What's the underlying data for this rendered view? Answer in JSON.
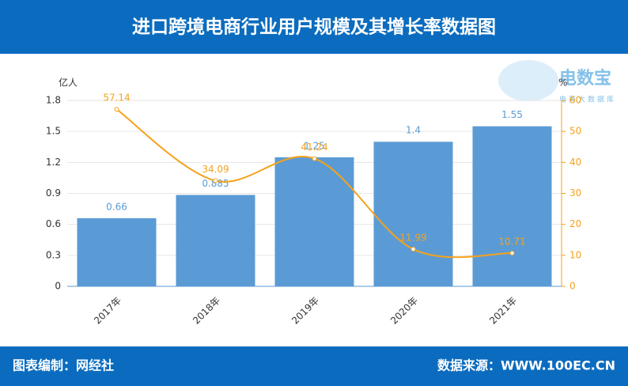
{
  "title": "进口跨境电商行业用户规模及其增长率数据图",
  "logo": {
    "name": "电数宝",
    "tagline": "电商大数据库"
  },
  "footer": {
    "left": "图表编制：网经社",
    "right": "数据来源：WWW.100EC.CN"
  },
  "chart_data": {
    "type": "bar",
    "y_unit": "亿人",
    "y2_unit": "%",
    "categories": [
      "2017年",
      "2018年",
      "2019年",
      "2020年",
      "2021年"
    ],
    "series": [
      {
        "type": "bar",
        "color": "#5b9bd5",
        "values": [
          0.66,
          0.885,
          1.25,
          1.4,
          1.55
        ]
      },
      {
        "type": "line",
        "axis": "y2",
        "color": "#f5a21b",
        "values": [
          57.14,
          34.09,
          41.24,
          11.99,
          10.71
        ]
      }
    ],
    "ylim": [
      0,
      1.8
    ],
    "yticks": [
      0,
      0.3,
      0.6,
      0.9,
      1.2,
      1.5,
      1.8
    ],
    "y2lim": [
      0,
      60
    ],
    "y2ticks": [
      0,
      10,
      20,
      30,
      40,
      50,
      60
    ],
    "grid": true
  }
}
